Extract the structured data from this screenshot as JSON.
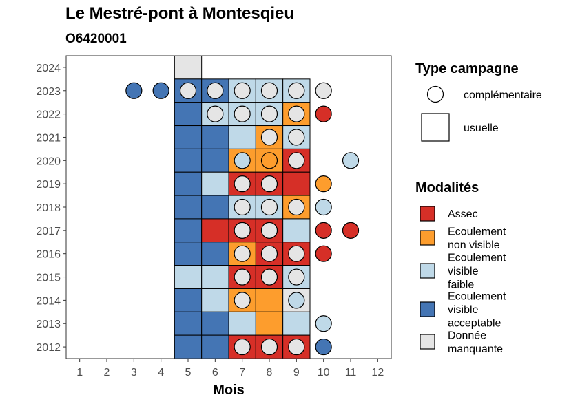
{
  "title": "Le Mestré-pont à Montesqieu",
  "subtitle": "O6420001",
  "chart_data": {
    "type": "heatmap",
    "xlabel": "Mois",
    "ylabel": "",
    "x_ticks": [
      1,
      2,
      3,
      4,
      5,
      6,
      7,
      8,
      9,
      10,
      11,
      12
    ],
    "y_ticks": [
      2012,
      2013,
      2014,
      2015,
      2016,
      2017,
      2018,
      2019,
      2020,
      2021,
      2022,
      2023,
      2024
    ],
    "xlim": [
      0.5,
      12.5
    ],
    "ylim": [
      2011.5,
      2024.5
    ],
    "modalities": [
      {
        "key": "A",
        "label": "Assec",
        "color": "#d62f27"
      },
      {
        "key": "O",
        "label": "Ecoulement non visible",
        "color": "#fd9d2d"
      },
      {
        "key": "F",
        "label": "Ecoulement visible faible",
        "color": "#bfd9e8"
      },
      {
        "key": "V",
        "label": "Ecoulement visible acceptable",
        "color": "#4475b4"
      },
      {
        "key": "M",
        "label": "Donnée manquante",
        "color": "#e5e5e5"
      }
    ],
    "campaign_types": [
      {
        "key": "circle",
        "label": "complémentaire"
      },
      {
        "key": "square",
        "label": "usuelle"
      }
    ],
    "legend_titles": {
      "campaign": "Type campagne",
      "modalities": "Modalités"
    },
    "legend_position": "right",
    "squares": [
      {
        "year": 2024,
        "month": 5,
        "mod": "M"
      },
      {
        "year": 2023,
        "month": 5,
        "mod": "V"
      },
      {
        "year": 2023,
        "month": 6,
        "mod": "V"
      },
      {
        "year": 2023,
        "month": 7,
        "mod": "F"
      },
      {
        "year": 2023,
        "month": 8,
        "mod": "F"
      },
      {
        "year": 2023,
        "month": 9,
        "mod": "F"
      },
      {
        "year": 2022,
        "month": 5,
        "mod": "V"
      },
      {
        "year": 2022,
        "month": 6,
        "mod": "F"
      },
      {
        "year": 2022,
        "month": 7,
        "mod": "F"
      },
      {
        "year": 2022,
        "month": 8,
        "mod": "F"
      },
      {
        "year": 2022,
        "month": 9,
        "mod": "O"
      },
      {
        "year": 2021,
        "month": 5,
        "mod": "V"
      },
      {
        "year": 2021,
        "month": 6,
        "mod": "V"
      },
      {
        "year": 2021,
        "month": 7,
        "mod": "F"
      },
      {
        "year": 2021,
        "month": 8,
        "mod": "O"
      },
      {
        "year": 2021,
        "month": 9,
        "mod": "F"
      },
      {
        "year": 2020,
        "month": 5,
        "mod": "V"
      },
      {
        "year": 2020,
        "month": 6,
        "mod": "V"
      },
      {
        "year": 2020,
        "month": 7,
        "mod": "O"
      },
      {
        "year": 2020,
        "month": 8,
        "mod": "O"
      },
      {
        "year": 2020,
        "month": 9,
        "mod": "A"
      },
      {
        "year": 2019,
        "month": 5,
        "mod": "V"
      },
      {
        "year": 2019,
        "month": 6,
        "mod": "F"
      },
      {
        "year": 2019,
        "month": 7,
        "mod": "A"
      },
      {
        "year": 2019,
        "month": 8,
        "mod": "A"
      },
      {
        "year": 2019,
        "month": 9,
        "mod": "A"
      },
      {
        "year": 2018,
        "month": 5,
        "mod": "V"
      },
      {
        "year": 2018,
        "month": 6,
        "mod": "V"
      },
      {
        "year": 2018,
        "month": 7,
        "mod": "F"
      },
      {
        "year": 2018,
        "month": 8,
        "mod": "F"
      },
      {
        "year": 2018,
        "month": 9,
        "mod": "O"
      },
      {
        "year": 2017,
        "month": 5,
        "mod": "V"
      },
      {
        "year": 2017,
        "month": 6,
        "mod": "A"
      },
      {
        "year": 2017,
        "month": 7,
        "mod": "A"
      },
      {
        "year": 2017,
        "month": 8,
        "mod": "A"
      },
      {
        "year": 2017,
        "month": 9,
        "mod": "F"
      },
      {
        "year": 2016,
        "month": 5,
        "mod": "V"
      },
      {
        "year": 2016,
        "month": 6,
        "mod": "V"
      },
      {
        "year": 2016,
        "month": 7,
        "mod": "O"
      },
      {
        "year": 2016,
        "month": 8,
        "mod": "A"
      },
      {
        "year": 2016,
        "month": 9,
        "mod": "A"
      },
      {
        "year": 2015,
        "month": 5,
        "mod": "F"
      },
      {
        "year": 2015,
        "month": 6,
        "mod": "F"
      },
      {
        "year": 2015,
        "month": 7,
        "mod": "A"
      },
      {
        "year": 2015,
        "month": 8,
        "mod": "A"
      },
      {
        "year": 2015,
        "month": 9,
        "mod": "F"
      },
      {
        "year": 2014,
        "month": 5,
        "mod": "V"
      },
      {
        "year": 2014,
        "month": 6,
        "mod": "F"
      },
      {
        "year": 2014,
        "month": 7,
        "mod": "O"
      },
      {
        "year": 2014,
        "month": 8,
        "mod": "O"
      },
      {
        "year": 2014,
        "month": 9,
        "mod": "M"
      },
      {
        "year": 2013,
        "month": 5,
        "mod": "V"
      },
      {
        "year": 2013,
        "month": 6,
        "mod": "V"
      },
      {
        "year": 2013,
        "month": 7,
        "mod": "F"
      },
      {
        "year": 2013,
        "month": 8,
        "mod": "O"
      },
      {
        "year": 2013,
        "month": 9,
        "mod": "F"
      },
      {
        "year": 2012,
        "month": 5,
        "mod": "V"
      },
      {
        "year": 2012,
        "month": 6,
        "mod": "V"
      },
      {
        "year": 2012,
        "month": 7,
        "mod": "A"
      },
      {
        "year": 2012,
        "month": 8,
        "mod": "A"
      },
      {
        "year": 2012,
        "month": 9,
        "mod": "A"
      }
    ],
    "circles": [
      {
        "year": 2023,
        "month": 3,
        "mod": "V"
      },
      {
        "year": 2023,
        "month": 4,
        "mod": "V"
      },
      {
        "year": 2023,
        "month": 5,
        "mod": "M"
      },
      {
        "year": 2023,
        "month": 6,
        "mod": "M"
      },
      {
        "year": 2023,
        "month": 7,
        "mod": "M"
      },
      {
        "year": 2023,
        "month": 8,
        "mod": "M"
      },
      {
        "year": 2023,
        "month": 9,
        "mod": "M"
      },
      {
        "year": 2023,
        "month": 10,
        "mod": "M"
      },
      {
        "year": 2022,
        "month": 6,
        "mod": "M"
      },
      {
        "year": 2022,
        "month": 7,
        "mod": "M"
      },
      {
        "year": 2022,
        "month": 8,
        "mod": "M"
      },
      {
        "year": 2022,
        "month": 9,
        "mod": "M"
      },
      {
        "year": 2022,
        "month": 10,
        "mod": "A"
      },
      {
        "year": 2021,
        "month": 8,
        "mod": "M"
      },
      {
        "year": 2021,
        "month": 9,
        "mod": "M"
      },
      {
        "year": 2020,
        "month": 7,
        "mod": "F"
      },
      {
        "year": 2020,
        "month": 8,
        "mod": "O"
      },
      {
        "year": 2020,
        "month": 9,
        "mod": "M"
      },
      {
        "year": 2020,
        "month": 11,
        "mod": "F"
      },
      {
        "year": 2019,
        "month": 7,
        "mod": "M"
      },
      {
        "year": 2019,
        "month": 8,
        "mod": "M"
      },
      {
        "year": 2019,
        "month": 10,
        "mod": "O"
      },
      {
        "year": 2018,
        "month": 7,
        "mod": "M"
      },
      {
        "year": 2018,
        "month": 8,
        "mod": "M"
      },
      {
        "year": 2018,
        "month": 9,
        "mod": "M"
      },
      {
        "year": 2018,
        "month": 10,
        "mod": "F"
      },
      {
        "year": 2017,
        "month": 7,
        "mod": "M"
      },
      {
        "year": 2017,
        "month": 8,
        "mod": "M"
      },
      {
        "year": 2017,
        "month": 10,
        "mod": "A"
      },
      {
        "year": 2017,
        "month": 11,
        "mod": "A"
      },
      {
        "year": 2016,
        "month": 7,
        "mod": "M"
      },
      {
        "year": 2016,
        "month": 8,
        "mod": "M"
      },
      {
        "year": 2016,
        "month": 9,
        "mod": "M"
      },
      {
        "year": 2016,
        "month": 10,
        "mod": "A"
      },
      {
        "year": 2015,
        "month": 7,
        "mod": "M"
      },
      {
        "year": 2015,
        "month": 8,
        "mod": "M"
      },
      {
        "year": 2015,
        "month": 9,
        "mod": "M"
      },
      {
        "year": 2014,
        "month": 7,
        "mod": "M"
      },
      {
        "year": 2014,
        "month": 9,
        "mod": "F"
      },
      {
        "year": 2013,
        "month": 10,
        "mod": "F"
      },
      {
        "year": 2012,
        "month": 7,
        "mod": "M"
      },
      {
        "year": 2012,
        "month": 8,
        "mod": "M"
      },
      {
        "year": 2012,
        "month": 9,
        "mod": "M"
      },
      {
        "year": 2012,
        "month": 10,
        "mod": "V"
      }
    ]
  }
}
